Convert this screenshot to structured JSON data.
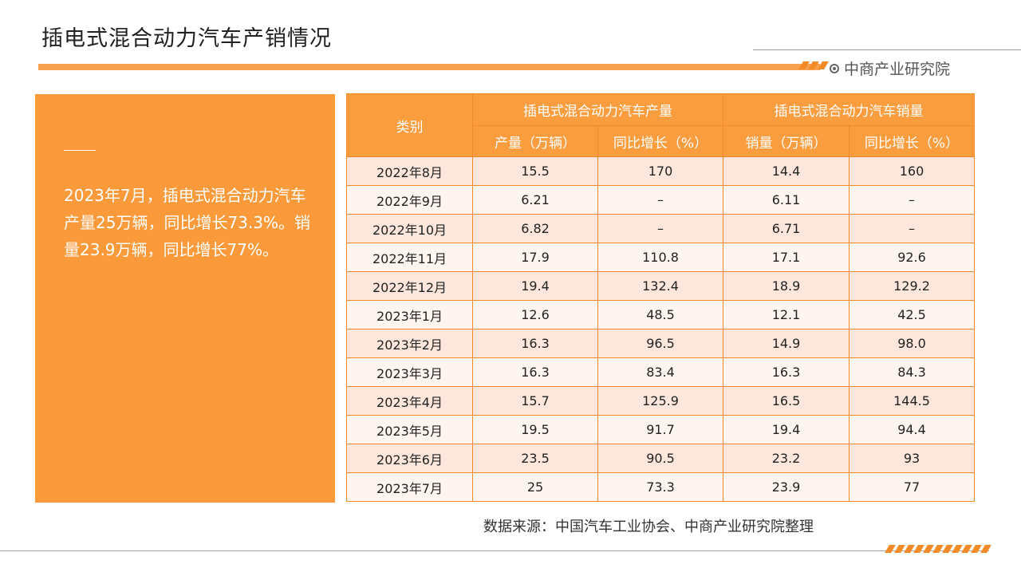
{
  "header": {
    "title": "插电式混合动力汽车产销情况",
    "brand": "中商产业研究院"
  },
  "summary": {
    "text": "2023年7月，插电式混合动力汽车产量25万辆，同比增长73.3%。销量23.9万辆，同比增长77%。"
  },
  "table": {
    "category_header": "类别",
    "group_headers": [
      "插电式混合动力汽车产量",
      "插电式混合动力汽车销量"
    ],
    "sub_headers": [
      "产量（万辆）",
      "同比增长（%）",
      "销量（万辆）",
      "同比增长（%）"
    ],
    "rows": [
      [
        "2022年8月",
        "15.5",
        "170",
        "14.4",
        "160"
      ],
      [
        "2022年9月",
        "6.21",
        "–",
        "6.11",
        "–"
      ],
      [
        "2022年10月",
        "6.82",
        "–",
        "6.71",
        "–"
      ],
      [
        "2022年11月",
        "17.9",
        "110.8",
        "17.1",
        "92.6"
      ],
      [
        "2022年12月",
        "19.4",
        "132.4",
        "18.9",
        "129.2"
      ],
      [
        "2023年1月",
        "12.6",
        "48.5",
        "12.1",
        "42.5"
      ],
      [
        "2023年2月",
        "16.3",
        "96.5",
        "14.9",
        "98.0"
      ],
      [
        "2023年3月",
        "16.3",
        "83.4",
        "16.3",
        "84.3"
      ],
      [
        "2023年4月",
        "15.7",
        "125.9",
        "16.5",
        "144.5"
      ],
      [
        "2023年5月",
        "19.5",
        "91.7",
        "19.4",
        "94.4"
      ],
      [
        "2023年6月",
        "23.5",
        "90.5",
        "23.2",
        "93"
      ],
      [
        "2023年7月",
        "25",
        "73.3",
        "23.9",
        "77"
      ]
    ]
  },
  "footer": {
    "source": "数据来源：中国汽车工业协会、中商产业研究院整理"
  },
  "colors": {
    "accent": "#f99d3e",
    "panel": "#fb9a3b",
    "row_odd": "#fde7dc",
    "row_even": "#fff5f0"
  },
  "icons": [
    "brand-logo-icon"
  ]
}
